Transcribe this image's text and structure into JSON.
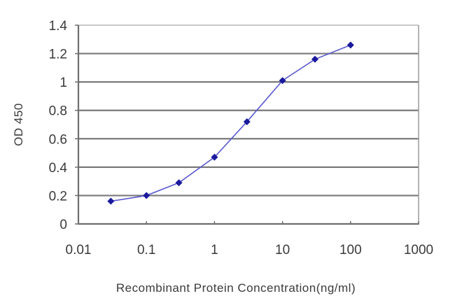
{
  "chart_data": {
    "type": "line",
    "title": "",
    "xlabel": "Recombinant Protein Concentration(ng/ml)",
    "ylabel": "OD 450",
    "x_scale": "log",
    "xlim": [
      0.01,
      1000
    ],
    "ylim": [
      0,
      1.4
    ],
    "x_ticks": [
      "0.01",
      "0.1",
      "1",
      "10",
      "100",
      "1000"
    ],
    "y_ticks": [
      "0",
      "0.2",
      "0.4",
      "0.6",
      "0.8",
      "1",
      "1.2",
      "1.4"
    ],
    "grid": {
      "horizontal": true,
      "vertical": false
    },
    "legend": null,
    "series": [
      {
        "name": "OD 450",
        "color": "#1a1a9e",
        "marker": "diamond",
        "x": [
          0.03,
          0.1,
          0.3,
          1,
          3,
          10,
          30,
          100
        ],
        "y": [
          0.16,
          0.2,
          0.29,
          0.47,
          0.72,
          1.01,
          1.16,
          1.26
        ]
      }
    ]
  },
  "colors": {
    "line": "#5a5ad0",
    "marker": "#1a1a9e",
    "grid": "#7a7a7a",
    "axis": "#6e6e6e"
  }
}
